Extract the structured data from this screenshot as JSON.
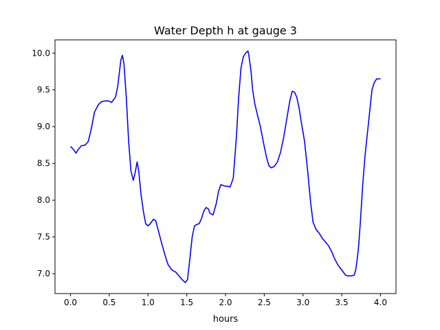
{
  "chart_data": {
    "type": "line",
    "title": "Water Depth h at gauge 3",
    "xlabel": "hours",
    "ylabel": "",
    "xlim": [
      -0.2,
      4.2
    ],
    "ylim": [
      6.73,
      10.18
    ],
    "xticks": [
      0.0,
      0.5,
      1.0,
      1.5,
      2.0,
      2.5,
      3.0,
      3.5,
      4.0
    ],
    "xtick_labels": [
      "0.0",
      "0.5",
      "1.0",
      "1.5",
      "2.0",
      "2.5",
      "3.0",
      "3.5",
      "4.0"
    ],
    "yticks": [
      7.0,
      7.5,
      8.0,
      8.5,
      9.0,
      9.5,
      10.0
    ],
    "ytick_labels": [
      "7.0",
      "7.5",
      "8.0",
      "8.5",
      "9.0",
      "9.5",
      "10.0"
    ],
    "grid": false,
    "legend": "none",
    "series": [
      {
        "color": "#0000ff",
        "x": [
          0.0,
          0.03,
          0.07,
          0.1,
          0.14,
          0.19,
          0.23,
          0.27,
          0.31,
          0.36,
          0.4,
          0.45,
          0.49,
          0.53,
          0.58,
          0.61,
          0.65,
          0.67,
          0.69,
          0.72,
          0.75,
          0.78,
          0.81,
          0.83,
          0.86,
          0.88,
          0.91,
          0.94,
          0.97,
          1.0,
          1.03,
          1.07,
          1.1,
          1.13,
          1.18,
          1.22,
          1.26,
          1.31,
          1.36,
          1.4,
          1.44,
          1.48,
          1.51,
          1.54,
          1.57,
          1.6,
          1.63,
          1.66,
          1.69,
          1.72,
          1.75,
          1.78,
          1.8,
          1.84,
          1.88,
          1.91,
          1.94,
          1.97,
          2.0,
          2.02,
          2.06,
          2.1,
          2.14,
          2.17,
          2.2,
          2.23,
          2.26,
          2.29,
          2.3,
          2.33,
          2.35,
          2.38,
          2.41,
          2.45,
          2.49,
          2.53,
          2.56,
          2.59,
          2.63,
          2.67,
          2.71,
          2.75,
          2.79,
          2.83,
          2.86,
          2.89,
          2.92,
          2.95,
          2.98,
          3.02,
          3.06,
          3.1,
          3.13,
          3.17,
          3.21,
          3.25,
          3.29,
          3.33,
          3.37,
          3.41,
          3.45,
          3.5,
          3.55,
          3.58,
          3.62,
          3.66,
          3.68,
          3.7,
          3.72,
          3.74,
          3.77,
          3.8,
          3.83,
          3.86,
          3.89,
          3.92,
          3.95,
          3.97,
          4.0
        ],
        "y": [
          8.73,
          8.7,
          8.64,
          8.69,
          8.74,
          8.75,
          8.8,
          8.98,
          9.2,
          9.3,
          9.34,
          9.35,
          9.35,
          9.33,
          9.4,
          9.55,
          9.91,
          9.97,
          9.85,
          9.4,
          8.8,
          8.4,
          8.27,
          8.35,
          8.52,
          8.4,
          8.08,
          7.85,
          7.68,
          7.65,
          7.68,
          7.74,
          7.72,
          7.6,
          7.4,
          7.25,
          7.12,
          7.05,
          7.02,
          6.97,
          6.92,
          6.88,
          6.92,
          7.2,
          7.5,
          7.65,
          7.67,
          7.68,
          7.75,
          7.85,
          7.9,
          7.88,
          7.82,
          7.8,
          7.95,
          8.12,
          8.21,
          8.2,
          8.19,
          8.19,
          8.18,
          8.3,
          8.85,
          9.4,
          9.8,
          9.95,
          10.0,
          10.03,
          9.98,
          9.75,
          9.5,
          9.3,
          9.17,
          9.0,
          8.78,
          8.58,
          8.47,
          8.44,
          8.46,
          8.52,
          8.65,
          8.85,
          9.1,
          9.35,
          9.48,
          9.47,
          9.4,
          9.25,
          9.05,
          8.8,
          8.4,
          7.95,
          7.7,
          7.6,
          7.55,
          7.48,
          7.43,
          7.38,
          7.3,
          7.2,
          7.12,
          7.05,
          6.98,
          6.97,
          6.97,
          6.98,
          7.05,
          7.2,
          7.4,
          7.7,
          8.2,
          8.6,
          8.9,
          9.2,
          9.5,
          9.6,
          9.65,
          9.65,
          9.65
        ]
      }
    ]
  }
}
